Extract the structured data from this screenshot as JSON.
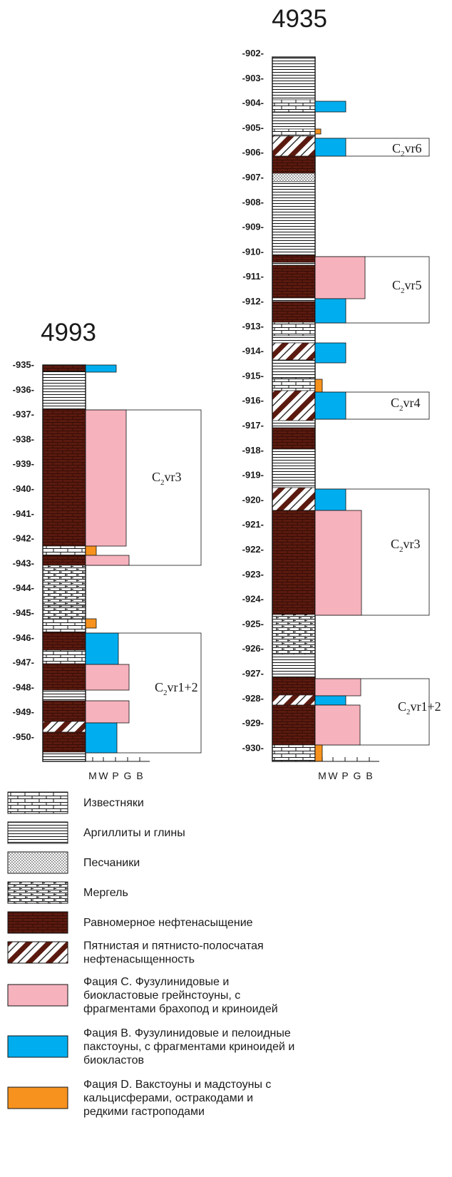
{
  "colors": {
    "faciesC": "#f6b2bd",
    "faciesB": "#00aeef",
    "faciesD": "#f7921e",
    "oil": "#5b1a0f"
  },
  "wells": [
    {
      "id": "4935",
      "title": "4935",
      "depths": [
        "-902-",
        "-903-",
        "-904-",
        "-905-",
        "-906-",
        "-907-",
        "-908-",
        "-909-",
        "-910-",
        "-911-",
        "-912-",
        "-913-",
        "-914-",
        "-915-",
        "-916-",
        "-917-",
        "-918-",
        "-919-",
        "-920-",
        "-921-",
        "-922-",
        "-923-",
        "-924-",
        "-925-",
        "-926-",
        "-927-",
        "-928-",
        "-929-",
        "-930-"
      ],
      "zones": [
        {
          "base": "C",
          "sub": "2",
          "suffix": "vr6"
        },
        {
          "base": "C",
          "sub": "2",
          "suffix": "vr5"
        },
        {
          "base": "C",
          "sub": "2",
          "suffix": "vr4"
        },
        {
          "base": "C",
          "sub": "2",
          "suffix": "vr3"
        },
        {
          "base": "C",
          "sub": "2",
          "suffix": "vr1+2"
        }
      ],
      "axis": [
        "M",
        "W",
        "P",
        "G",
        "B"
      ]
    },
    {
      "id": "4993",
      "title": "4993",
      "depths": [
        "-935-",
        "-936-",
        "-937-",
        "-938-",
        "-939-",
        "-940-",
        "-941-",
        "-942-",
        "-943-",
        "-944-",
        "-945-",
        "-946-",
        "-947-",
        "-948-",
        "-949-",
        "-950-"
      ],
      "zones": [
        {
          "base": "C",
          "sub": "2",
          "suffix": "vr3"
        },
        {
          "base": "C",
          "sub": "2",
          "suffix": "vr1+2"
        }
      ],
      "axis": [
        "M",
        "W",
        "P",
        "G",
        "B"
      ]
    }
  ],
  "legend": [
    {
      "pattern": "limestone",
      "label": [
        "Известняки"
      ]
    },
    {
      "pattern": "argillite",
      "label": [
        "Аргиллиты и глины"
      ]
    },
    {
      "pattern": "sandstone",
      "label": [
        "Песчаники"
      ]
    },
    {
      "pattern": "marl",
      "label": [
        "Мергель"
      ]
    },
    {
      "pattern": "oil",
      "label": [
        "Равномерное нефтенасыщение"
      ]
    },
    {
      "pattern": "spotted",
      "label": [
        "Пятнистая и пятнисто-полосчатая",
        "нефтенасыщенность"
      ]
    },
    {
      "pattern": "faciesC",
      "label": [
        "Фация С. Фузулинидовые и",
        "биокластовые грейнстоуны, с",
        "фрагментами брахопод и криноидей"
      ]
    },
    {
      "pattern": "faciesB",
      "label": [
        "Фация В. Фузулинидовые и пелоидные",
        "пакстоуны, с фрагментами криноидей и",
        "биокластов"
      ]
    },
    {
      "pattern": "faciesD",
      "label": [
        "Фация D. Вакстоуны и мадстоуны с",
        "кальцисферами, остракодами и",
        "редкими гастроподами"
      ]
    }
  ]
}
